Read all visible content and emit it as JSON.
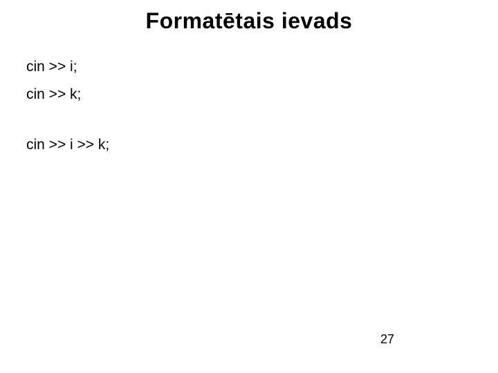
{
  "slide": {
    "title": "Formatētais ievads",
    "lines": {
      "l1": "cin >> i;",
      "l2": "cin >> k;",
      "l3": "cin >> i >> k;"
    },
    "page_number": "27"
  },
  "style": {
    "background_color": "#ffffff",
    "text_color": "#000000",
    "title_fontsize_pt": 32,
    "body_fontsize_pt": 21,
    "pagenum_fontsize_pt": 18,
    "font_family": "Comic Sans MS"
  }
}
